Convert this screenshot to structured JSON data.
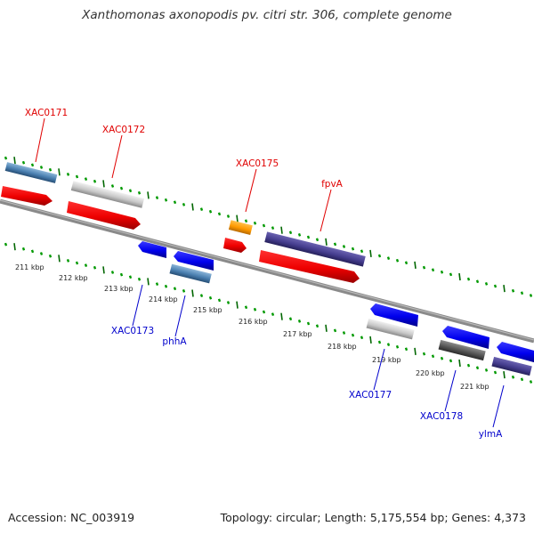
{
  "title": "Xanthomonas axonopodis pv. citri str. 306, complete genome",
  "footer": {
    "accession": "Accession: NC_003919",
    "info": "Topology: circular; Length: 5,175,554 bp; Genes: 4,373"
  },
  "kbp_labels": [
    "211 kbp",
    "212 kbp",
    "213 kbp",
    "214 kbp",
    "215 kbp",
    "216 kbp",
    "217 kbp",
    "218 kbp",
    "219 kbp",
    "220 kbp",
    "221 kbp"
  ],
  "gene_labels": [
    {
      "id": "xac0171",
      "text": "XAC0171",
      "color": "#e00000"
    },
    {
      "id": "xac0172",
      "text": "XAC0172",
      "color": "#e00000"
    },
    {
      "id": "xac0175",
      "text": "XAC0175",
      "color": "#e00000"
    },
    {
      "id": "fpva",
      "text": "fpvA",
      "color": "#e00000"
    },
    {
      "id": "xac0173",
      "text": "XAC0173",
      "color": "#0000cc"
    },
    {
      "id": "phha",
      "text": "phhA",
      "color": "#0000cc"
    },
    {
      "id": "xac0177",
      "text": "XAC0177",
      "color": "#0000cc"
    },
    {
      "id": "xac0178",
      "text": "XAC0178",
      "color": "#0000cc"
    },
    {
      "id": "ylma",
      "text": "ylmA",
      "color": "#0000cc"
    }
  ],
  "colors": {
    "forward_gene": "#ff0000",
    "reverse_gene": "#0000ee",
    "tick_major": "#006600",
    "tick_minor": "#009900",
    "backbone": "#777777"
  }
}
